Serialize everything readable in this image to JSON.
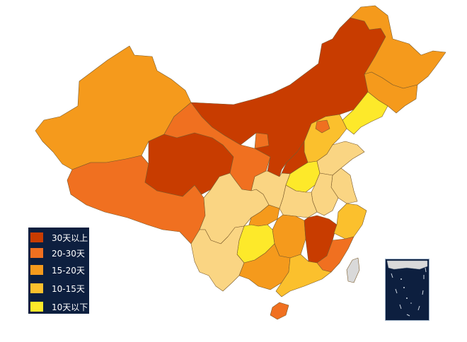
{
  "colors": {
    "level_30_plus": "#c83c00",
    "level_20_30": "#f07020",
    "level_15_20": "#f59a1c",
    "level_10_15": "#fbc02d",
    "level_under_10": "#fde92a",
    "other": "#fad583",
    "no_data": "#d9d9d9",
    "legend_bg": "#0d1f3f"
  },
  "legend": {
    "items": [
      {
        "label": "30天以上",
        "color": "#c83c00"
      },
      {
        "label": "20-30天",
        "color": "#f07020"
      },
      {
        "label": "15-20天",
        "color": "#f59a1c"
      },
      {
        "label": "10-15天",
        "color": "#fbc02d"
      },
      {
        "label": "10天以下",
        "color": "#fde92a"
      }
    ]
  },
  "regions": [
    {
      "name": "xinjiang",
      "level": "15-20"
    },
    {
      "name": "tibet",
      "level": "20-30"
    },
    {
      "name": "qinghai",
      "level": "30+"
    },
    {
      "name": "gansu",
      "level": "20-30"
    },
    {
      "name": "ningxia",
      "level": "20-30"
    },
    {
      "name": "inner-mongolia",
      "level": "30+"
    },
    {
      "name": "heilongjiang",
      "level": "15-20"
    },
    {
      "name": "jilin",
      "level": "15-20"
    },
    {
      "name": "liaoning",
      "level": "<10"
    },
    {
      "name": "hebei",
      "level": "10-15"
    },
    {
      "name": "beijing",
      "level": "20-30"
    },
    {
      "name": "shanxi",
      "level": "30+"
    },
    {
      "name": "shaanxi",
      "level": "other"
    },
    {
      "name": "henan",
      "level": "<10"
    },
    {
      "name": "shandong",
      "level": "other"
    },
    {
      "name": "anhui",
      "level": "other"
    },
    {
      "name": "jiangsu",
      "level": "other"
    },
    {
      "name": "hubei",
      "level": "other"
    },
    {
      "name": "sichuan",
      "level": "other"
    },
    {
      "name": "chongqing",
      "level": "15-20"
    },
    {
      "name": "hunan",
      "level": "15-20"
    },
    {
      "name": "jiangxi",
      "level": "30+"
    },
    {
      "name": "zhejiang",
      "level": "10-15"
    },
    {
      "name": "fujian",
      "level": "20-30"
    },
    {
      "name": "guizhou",
      "level": "<10"
    },
    {
      "name": "yunnan",
      "level": "other"
    },
    {
      "name": "guangxi",
      "level": "15-20"
    },
    {
      "name": "guangdong",
      "level": "10-15"
    },
    {
      "name": "hainan",
      "level": "20-30"
    },
    {
      "name": "taiwan",
      "level": "no-data"
    }
  ]
}
